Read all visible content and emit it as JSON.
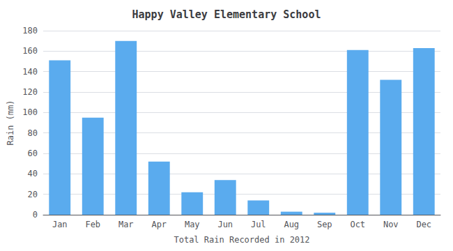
{
  "chart_data": {
    "type": "bar",
    "title": "Happy Valley Elementary School",
    "xlabel": "Total Rain Recorded in 2012",
    "ylabel": "Rain (mm)",
    "categories": [
      "Jan",
      "Feb",
      "Mar",
      "Apr",
      "May",
      "Jun",
      "Jul",
      "Aug",
      "Sep",
      "Oct",
      "Nov",
      "Dec"
    ],
    "values": [
      151,
      95,
      170,
      52,
      22,
      34,
      14,
      3,
      2,
      161,
      132,
      163
    ],
    "color": "#5aabee",
    "ylim": [
      0,
      180
    ],
    "yticks": [
      0,
      20,
      40,
      60,
      80,
      100,
      120,
      140,
      160,
      180
    ],
    "grid": true
  }
}
